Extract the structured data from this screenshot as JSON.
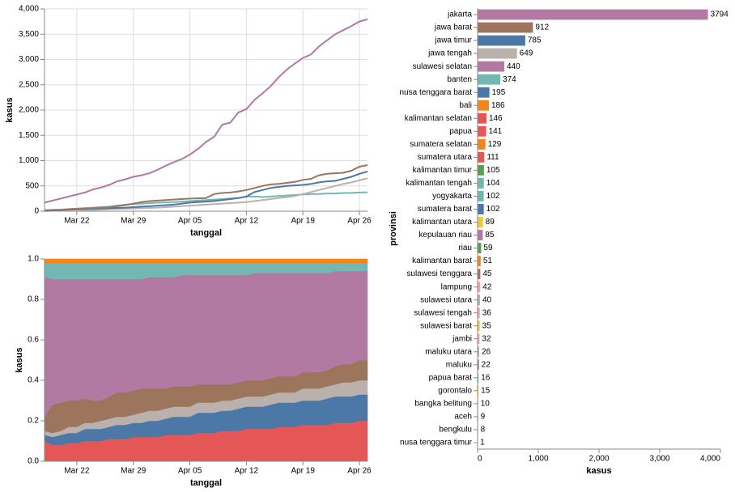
{
  "chart_data": [
    {
      "type": "line",
      "xlabel": "tanggal",
      "ylabel": "kasus",
      "x": [
        "Mar 18",
        "Mar 19",
        "Mar 20",
        "Mar 21",
        "Mar 22",
        "Mar 23",
        "Mar 24",
        "Mar 25",
        "Mar 26",
        "Mar 27",
        "Mar 28",
        "Mar 29",
        "Mar 30",
        "Mar 31",
        "Apr 01",
        "Apr 02",
        "Apr 03",
        "Apr 04",
        "Apr 05",
        "Apr 06",
        "Apr 07",
        "Apr 08",
        "Apr 09",
        "Apr 10",
        "Apr 11",
        "Apr 12",
        "Apr 13",
        "Apr 14",
        "Apr 15",
        "Apr 16",
        "Apr 17",
        "Apr 18",
        "Apr 19",
        "Apr 20",
        "Apr 21",
        "Apr 22",
        "Apr 23",
        "Apr 24",
        "Apr 25",
        "Apr 26",
        "Apr 27"
      ],
      "xticks": [
        "Mar 22",
        "Mar 29",
        "Apr 05",
        "Apr 12",
        "Apr 19",
        "Apr 26"
      ],
      "ylim": [
        0,
        4000
      ],
      "yticks": [
        0,
        500,
        {
          "value": 1000,
          "label": "1,000"
        },
        {
          "value": 1500,
          "label": "1,500"
        },
        {
          "value": 2000,
          "label": "2,000"
        },
        {
          "value": 2500,
          "label": "2,500"
        },
        {
          "value": 3000,
          "label": "3,000"
        },
        {
          "value": 3500,
          "label": "3,500"
        },
        {
          "value": 4000,
          "label": "4,000"
        }
      ],
      "grid": true,
      "series": [
        {
          "color": "#72b7b2",
          "values": [
            10,
            20,
            30,
            40,
            50,
            60,
            70,
            80,
            90,
            110,
            130,
            140,
            150,
            160,
            170,
            175,
            180,
            190,
            200,
            210,
            220,
            230,
            240,
            250,
            260,
            290,
            290,
            280,
            290,
            300,
            310,
            320,
            330,
            340,
            340,
            350,
            350,
            360,
            360,
            370,
            374
          ]
        },
        {
          "color": "#bab0ac",
          "values": [
            5,
            8,
            10,
            12,
            15,
            20,
            25,
            30,
            40,
            45,
            50,
            55,
            60,
            65,
            70,
            80,
            90,
            100,
            110,
            120,
            130,
            140,
            150,
            160,
            170,
            180,
            200,
            220,
            240,
            260,
            280,
            300,
            340,
            380,
            420,
            460,
            500,
            540,
            570,
            610,
            649
          ]
        },
        {
          "color": "#4c78a8",
          "values": [
            10,
            15,
            20,
            30,
            40,
            45,
            50,
            55,
            60,
            65,
            70,
            80,
            90,
            100,
            110,
            120,
            130,
            150,
            170,
            180,
            190,
            200,
            220,
            240,
            260,
            290,
            380,
            420,
            460,
            480,
            500,
            510,
            520,
            540,
            570,
            590,
            600,
            640,
            680,
            740,
            785
          ]
        },
        {
          "color": "#9d755d",
          "values": [
            20,
            25,
            30,
            40,
            50,
            55,
            60,
            70,
            80,
            100,
            120,
            150,
            180,
            200,
            210,
            220,
            230,
            240,
            250,
            255,
            260,
            340,
            360,
            370,
            390,
            420,
            460,
            500,
            530,
            540,
            560,
            580,
            620,
            640,
            710,
            740,
            750,
            760,
            800,
            880,
            912
          ]
        },
        {
          "color": "#b279a2",
          "values": [
            170,
            210,
            250,
            290,
            330,
            370,
            430,
            470,
            520,
            590,
            630,
            680,
            710,
            750,
            820,
            900,
            970,
            1030,
            1120,
            1230,
            1370,
            1470,
            1710,
            1750,
            1950,
            2020,
            2200,
            2330,
            2470,
            2650,
            2800,
            2920,
            3030,
            3100,
            3260,
            3380,
            3500,
            3580,
            3660,
            3750,
            3794
          ]
        }
      ]
    },
    {
      "type": "area",
      "xlabel": "tanggal",
      "ylabel": "kasus",
      "x": [
        "Mar 18",
        "Mar 19",
        "Mar 20",
        "Mar 21",
        "Mar 22",
        "Mar 23",
        "Mar 24",
        "Mar 25",
        "Mar 26",
        "Mar 27",
        "Mar 28",
        "Mar 29",
        "Mar 30",
        "Mar 31",
        "Apr 01",
        "Apr 02",
        "Apr 03",
        "Apr 04",
        "Apr 05",
        "Apr 06",
        "Apr 07",
        "Apr 08",
        "Apr 09",
        "Apr 10",
        "Apr 11",
        "Apr 12",
        "Apr 13",
        "Apr 14",
        "Apr 15",
        "Apr 16",
        "Apr 17",
        "Apr 18",
        "Apr 19",
        "Apr 20",
        "Apr 21",
        "Apr 22",
        "Apr 23",
        "Apr 24",
        "Apr 25",
        "Apr 26",
        "Apr 27"
      ],
      "xticks": [
        "Mar 22",
        "Mar 29",
        "Apr 05",
        "Apr 12",
        "Apr 19",
        "Apr 26"
      ],
      "ylim": [
        0,
        1
      ],
      "yticks": [
        {
          "value": 0,
          "label": "0.0"
        },
        0.2,
        0.4,
        0.6,
        0.8,
        {
          "value": 1,
          "label": "1.0"
        }
      ],
      "grid": false,
      "series": [
        {
          "color": "#e45756",
          "values": [
            0.1,
            0.08,
            0.08,
            0.09,
            0.09,
            0.1,
            0.1,
            0.1,
            0.11,
            0.11,
            0.11,
            0.12,
            0.12,
            0.12,
            0.12,
            0.13,
            0.13,
            0.13,
            0.13,
            0.14,
            0.14,
            0.14,
            0.15,
            0.15,
            0.15,
            0.16,
            0.16,
            0.16,
            0.16,
            0.17,
            0.17,
            0.17,
            0.18,
            0.18,
            0.18,
            0.18,
            0.19,
            0.19,
            0.19,
            0.2,
            0.2
          ]
        },
        {
          "color": "#4c78a8",
          "values": [
            0.03,
            0.04,
            0.05,
            0.05,
            0.05,
            0.06,
            0.06,
            0.06,
            0.06,
            0.07,
            0.07,
            0.07,
            0.07,
            0.08,
            0.08,
            0.08,
            0.09,
            0.09,
            0.09,
            0.1,
            0.1,
            0.1,
            0.1,
            0.1,
            0.11,
            0.11,
            0.11,
            0.11,
            0.12,
            0.12,
            0.12,
            0.12,
            0.12,
            0.12,
            0.12,
            0.13,
            0.13,
            0.13,
            0.13,
            0.13,
            0.13
          ]
        },
        {
          "color": "#bab0ac",
          "values": [
            0.02,
            0.02,
            0.02,
            0.03,
            0.03,
            0.03,
            0.03,
            0.04,
            0.04,
            0.04,
            0.04,
            0.04,
            0.05,
            0.05,
            0.05,
            0.05,
            0.05,
            0.05,
            0.05,
            0.05,
            0.05,
            0.05,
            0.05,
            0.05,
            0.05,
            0.05,
            0.05,
            0.05,
            0.05,
            0.05,
            0.05,
            0.05,
            0.06,
            0.06,
            0.06,
            0.06,
            0.06,
            0.07,
            0.07,
            0.07,
            0.07
          ]
        },
        {
          "color": "#9d755d",
          "values": [
            0.07,
            0.14,
            0.14,
            0.13,
            0.13,
            0.12,
            0.11,
            0.1,
            0.11,
            0.12,
            0.12,
            0.12,
            0.12,
            0.11,
            0.11,
            0.1,
            0.1,
            0.1,
            0.1,
            0.09,
            0.09,
            0.09,
            0.08,
            0.08,
            0.08,
            0.08,
            0.08,
            0.08,
            0.08,
            0.08,
            0.08,
            0.08,
            0.08,
            0.08,
            0.08,
            0.08,
            0.09,
            0.09,
            0.09,
            0.1,
            0.1
          ]
        },
        {
          "color": "#b279a2",
          "values": [
            0.69,
            0.62,
            0.61,
            0.6,
            0.6,
            0.59,
            0.6,
            0.6,
            0.58,
            0.56,
            0.56,
            0.55,
            0.54,
            0.55,
            0.55,
            0.55,
            0.54,
            0.55,
            0.55,
            0.54,
            0.54,
            0.54,
            0.54,
            0.54,
            0.53,
            0.52,
            0.53,
            0.53,
            0.52,
            0.51,
            0.51,
            0.51,
            0.49,
            0.49,
            0.49,
            0.48,
            0.47,
            0.46,
            0.46,
            0.44,
            0.44
          ]
        },
        {
          "color": "#72b7b2",
          "values": [
            0.07,
            0.08,
            0.08,
            0.08,
            0.08,
            0.08,
            0.08,
            0.08,
            0.08,
            0.08,
            0.08,
            0.08,
            0.08,
            0.07,
            0.07,
            0.07,
            0.07,
            0.06,
            0.06,
            0.06,
            0.06,
            0.06,
            0.06,
            0.06,
            0.06,
            0.06,
            0.05,
            0.05,
            0.05,
            0.05,
            0.05,
            0.05,
            0.05,
            0.05,
            0.05,
            0.05,
            0.04,
            0.04,
            0.04,
            0.04,
            0.04
          ]
        },
        {
          "color": "#f58518",
          "values": [
            0.02,
            0.02,
            0.02,
            0.02,
            0.02,
            0.02,
            0.02,
            0.02,
            0.02,
            0.02,
            0.02,
            0.02,
            0.02,
            0.02,
            0.02,
            0.02,
            0.02,
            0.02,
            0.02,
            0.02,
            0.02,
            0.02,
            0.02,
            0.02,
            0.02,
            0.02,
            0.02,
            0.02,
            0.02,
            0.02,
            0.02,
            0.02,
            0.02,
            0.02,
            0.02,
            0.02,
            0.02,
            0.02,
            0.02,
            0.02,
            0.02
          ]
        }
      ]
    },
    {
      "type": "hbar",
      "xlabel": "kasus",
      "ylabel": "provinsi",
      "categories": [
        "jakarta",
        "jawa barat",
        "jawa timur",
        "jawa tengah",
        "sulawesi selatan",
        "banten",
        "nusa tenggara barat",
        "bali",
        "kalimantan selatan",
        "papua",
        "sumatera selatan",
        "sumatera utara",
        "kalimantan timur",
        "kalimantan tengah",
        "yogyakarta",
        "sumatera barat",
        "kalimantan utara",
        "kepulauan riau",
        "riau",
        "kalimantan barat",
        "sulawesi tenggara",
        "lampung",
        "sulawesi utara",
        "sulawesi tengah",
        "sulawesi barat",
        "jambi",
        "maluku utara",
        "maluku",
        "papua barat",
        "gorontalo",
        "bangka belitung",
        "aceh",
        "bengkulu",
        "nusa tenggara timur"
      ],
      "values": [
        3794,
        912,
        785,
        649,
        440,
        374,
        195,
        186,
        146,
        141,
        129,
        111,
        105,
        104,
        102,
        102,
        89,
        85,
        59,
        51,
        45,
        42,
        40,
        36,
        35,
        32,
        26,
        22,
        16,
        15,
        10,
        9,
        8,
        1
      ],
      "colors": [
        "#b279a2",
        "#9d755d",
        "#4c78a8",
        "#bab0ac",
        "#b279a2",
        "#72b7b2",
        "#4c78a8",
        "#f58518",
        "#e45756",
        "#e45756",
        "#f58518",
        "#e45756",
        "#54a24b",
        "#72b7b2",
        "#72b7b2",
        "#4c78a8",
        "#eeca3b",
        "#b279a2",
        "#54a24b",
        "#f58518",
        "#9d755d",
        "#ff9da6",
        "#bab0ac",
        "#ff9da6",
        "#eeca3b",
        "#ff9da6",
        "#bab0ac",
        "#9d755d",
        "#72b7b2",
        "#eeca3b",
        "#ff9da6",
        "#4c78a8",
        "#bab0ac",
        "#9d755d"
      ],
      "xlim": [
        0,
        4000
      ],
      "xticks": [
        0,
        {
          "value": 1000,
          "label": "1,000"
        },
        {
          "value": 2000,
          "label": "2,000"
        },
        {
          "value": 3000,
          "label": "3,000"
        },
        {
          "value": 4000,
          "label": "4,000"
        }
      ],
      "grid": false
    }
  ]
}
